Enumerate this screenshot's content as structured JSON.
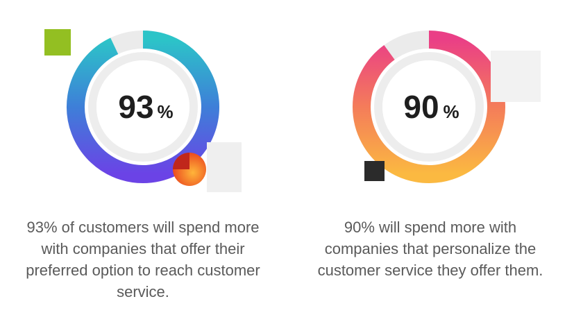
{
  "chart_data": [
    {
      "type": "pie",
      "value": 93,
      "value_text": "93",
      "unit": "%",
      "caption": "93% of customers will spend more with companies that offer their preferred option to reach customer service.",
      "gradient": [
        "#2cc4c8",
        "#3e7fd8",
        "#6b43e6"
      ]
    },
    {
      "type": "pie",
      "value": 90,
      "value_text": "90",
      "unit": "%",
      "caption": "90% will spend more with companies that personalize the customer service they offer them.",
      "gradient": [
        "#ea3f86",
        "#f47c5a",
        "#fbb941"
      ]
    }
  ],
  "colors": {
    "track": "#ebebeb",
    "label": "#1e1e1e",
    "caption": "#5a5a5a",
    "green_square": "#93bf22",
    "dark_square": "#2b2b2b",
    "orange_dot": "#f06a24"
  },
  "decorations": [
    "green-square",
    "orange-pie-icon",
    "dark-square"
  ]
}
